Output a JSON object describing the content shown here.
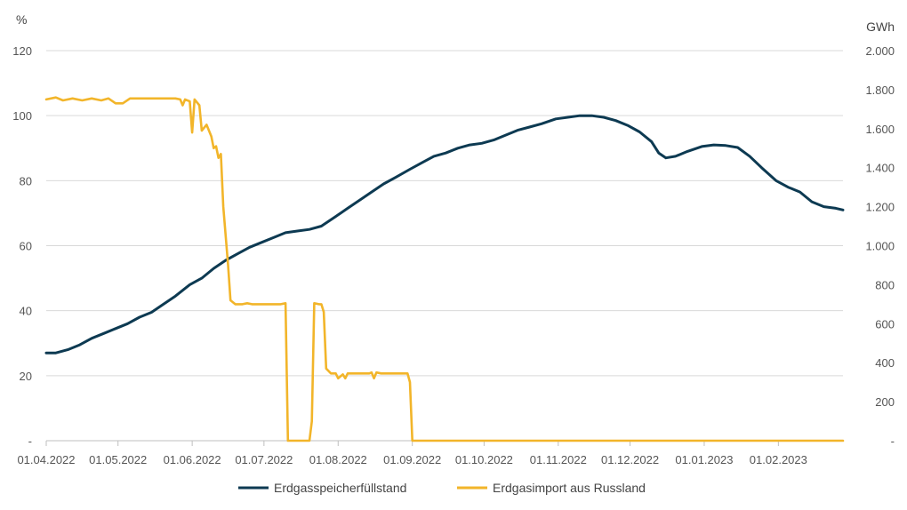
{
  "chart_data": {
    "type": "line",
    "y_left_unit": "%",
    "y_right_unit": "GWh",
    "y_left_ticks": [
      "120",
      "100",
      "80",
      "60",
      "40",
      "20",
      "-"
    ],
    "y_right_ticks": [
      "2.000",
      "1.800",
      "1.600",
      "1.400",
      "1.200",
      "1.000",
      "800",
      "600",
      "400",
      "200",
      "-"
    ],
    "y_left_range": [
      0,
      120
    ],
    "y_right_range": [
      0,
      2000
    ],
    "x_ticks": [
      "01.04.2022",
      "01.05.2022",
      "01.06.2022",
      "01.07.2022",
      "01.08.2022",
      "01.09.2022",
      "01.10.2022",
      "01.11.2022",
      "01.12.2022",
      "01.01.2023",
      "01.02.2023"
    ],
    "x_range": [
      "2022-04-01",
      "2023-02-28"
    ],
    "grid": "horizontal",
    "legend_position": "bottom",
    "colors": {
      "storage": "#0d3a52",
      "import": "#f2b52a",
      "grid": "#d9d9d9"
    },
    "series": [
      {
        "name": "Erdgasspeicherfüllstand",
        "axis": "left",
        "points": [
          [
            "2022-04-01",
            27
          ],
          [
            "2022-04-05",
            27
          ],
          [
            "2022-04-10",
            28
          ],
          [
            "2022-04-15",
            29.5
          ],
          [
            "2022-04-20",
            31.5
          ],
          [
            "2022-04-25",
            33
          ],
          [
            "2022-04-30",
            34.5
          ],
          [
            "2022-05-05",
            36
          ],
          [
            "2022-05-10",
            38
          ],
          [
            "2022-05-15",
            39.5
          ],
          [
            "2022-05-20",
            42
          ],
          [
            "2022-05-25",
            44.5
          ],
          [
            "2022-05-31",
            48
          ],
          [
            "2022-06-05",
            50
          ],
          [
            "2022-06-10",
            53
          ],
          [
            "2022-06-15",
            55.5
          ],
          [
            "2022-06-20",
            57.5
          ],
          [
            "2022-06-25",
            59.5
          ],
          [
            "2022-06-30",
            61
          ],
          [
            "2022-07-05",
            62.5
          ],
          [
            "2022-07-10",
            64
          ],
          [
            "2022-07-15",
            64.5
          ],
          [
            "2022-07-20",
            65
          ],
          [
            "2022-07-25",
            66
          ],
          [
            "2022-07-31",
            69
          ],
          [
            "2022-08-05",
            71.5
          ],
          [
            "2022-08-10",
            74
          ],
          [
            "2022-08-15",
            76.5
          ],
          [
            "2022-08-20",
            79
          ],
          [
            "2022-08-25",
            81
          ],
          [
            "2022-08-31",
            83.5
          ],
          [
            "2022-09-05",
            85.5
          ],
          [
            "2022-09-10",
            87.5
          ],
          [
            "2022-09-15",
            88.5
          ],
          [
            "2022-09-20",
            90
          ],
          [
            "2022-09-25",
            91
          ],
          [
            "2022-09-30",
            91.5
          ],
          [
            "2022-10-05",
            92.5
          ],
          [
            "2022-10-10",
            94
          ],
          [
            "2022-10-15",
            95.5
          ],
          [
            "2022-10-20",
            96.5
          ],
          [
            "2022-10-25",
            97.5
          ],
          [
            "2022-10-31",
            99
          ],
          [
            "2022-11-05",
            99.5
          ],
          [
            "2022-11-10",
            100
          ],
          [
            "2022-11-15",
            100
          ],
          [
            "2022-11-20",
            99.5
          ],
          [
            "2022-11-25",
            98.5
          ],
          [
            "2022-11-30",
            97
          ],
          [
            "2022-12-05",
            95
          ],
          [
            "2022-12-10",
            92
          ],
          [
            "2022-12-13",
            88.5
          ],
          [
            "2022-12-16",
            87
          ],
          [
            "2022-12-20",
            87.5
          ],
          [
            "2022-12-25",
            89
          ],
          [
            "2022-12-31",
            90.5
          ],
          [
            "2023-01-05",
            91
          ],
          [
            "2023-01-10",
            90.8
          ],
          [
            "2023-01-15",
            90.2
          ],
          [
            "2023-01-20",
            87.5
          ],
          [
            "2023-01-25",
            84
          ],
          [
            "2023-01-31",
            80
          ],
          [
            "2023-02-05",
            78
          ],
          [
            "2023-02-10",
            76.5
          ],
          [
            "2023-02-15",
            73.5
          ],
          [
            "2023-02-20",
            72
          ],
          [
            "2023-02-25",
            71.5
          ],
          [
            "2023-02-28",
            71
          ]
        ]
      },
      {
        "name": "Erdgasimport aus Russland",
        "axis": "right",
        "points": [
          [
            "2022-04-01",
            1750
          ],
          [
            "2022-04-05",
            1760
          ],
          [
            "2022-04-08",
            1745
          ],
          [
            "2022-04-12",
            1755
          ],
          [
            "2022-04-16",
            1745
          ],
          [
            "2022-04-20",
            1755
          ],
          [
            "2022-04-24",
            1745
          ],
          [
            "2022-04-27",
            1755
          ],
          [
            "2022-04-30",
            1730
          ],
          [
            "2022-05-03",
            1730
          ],
          [
            "2022-05-06",
            1755
          ],
          [
            "2022-05-15",
            1755
          ],
          [
            "2022-05-25",
            1755
          ],
          [
            "2022-05-27",
            1750
          ],
          [
            "2022-05-28",
            1720
          ],
          [
            "2022-05-29",
            1750
          ],
          [
            "2022-05-31",
            1740
          ],
          [
            "2022-06-01",
            1580
          ],
          [
            "2022-06-02",
            1750
          ],
          [
            "2022-06-04",
            1720
          ],
          [
            "2022-06-05",
            1590
          ],
          [
            "2022-06-07",
            1620
          ],
          [
            "2022-06-09",
            1560
          ],
          [
            "2022-06-10",
            1500
          ],
          [
            "2022-06-11",
            1510
          ],
          [
            "2022-06-12",
            1450
          ],
          [
            "2022-06-13",
            1470
          ],
          [
            "2022-06-14",
            1200
          ],
          [
            "2022-06-15",
            1050
          ],
          [
            "2022-06-16",
            900
          ],
          [
            "2022-06-17",
            720
          ],
          [
            "2022-06-19",
            700
          ],
          [
            "2022-06-22",
            700
          ],
          [
            "2022-06-24",
            705
          ],
          [
            "2022-06-26",
            700
          ],
          [
            "2022-07-05",
            700
          ],
          [
            "2022-07-08",
            700
          ],
          [
            "2022-07-10",
            705
          ],
          [
            "2022-07-11",
            0
          ],
          [
            "2022-07-20",
            0
          ],
          [
            "2022-07-21",
            100
          ],
          [
            "2022-07-22",
            705
          ],
          [
            "2022-07-24",
            700
          ],
          [
            "2022-07-25",
            700
          ],
          [
            "2022-07-26",
            660
          ],
          [
            "2022-07-27",
            370
          ],
          [
            "2022-07-29",
            345
          ],
          [
            "2022-07-31",
            345
          ],
          [
            "2022-08-01",
            320
          ],
          [
            "2022-08-03",
            340
          ],
          [
            "2022-08-04",
            320
          ],
          [
            "2022-08-05",
            345
          ],
          [
            "2022-08-10",
            345
          ],
          [
            "2022-08-14",
            345
          ],
          [
            "2022-08-15",
            350
          ],
          [
            "2022-08-16",
            320
          ],
          [
            "2022-08-17",
            350
          ],
          [
            "2022-08-19",
            345
          ],
          [
            "2022-08-30",
            345
          ],
          [
            "2022-08-31",
            300
          ],
          [
            "2022-09-01",
            0
          ],
          [
            "2023-02-28",
            0
          ]
        ]
      }
    ]
  },
  "legend": [
    {
      "label": "Erdgasspeicherfüllstand",
      "color": "#0d3a52"
    },
    {
      "label": "Erdgasimport aus Russland",
      "color": "#f2b52a"
    }
  ]
}
